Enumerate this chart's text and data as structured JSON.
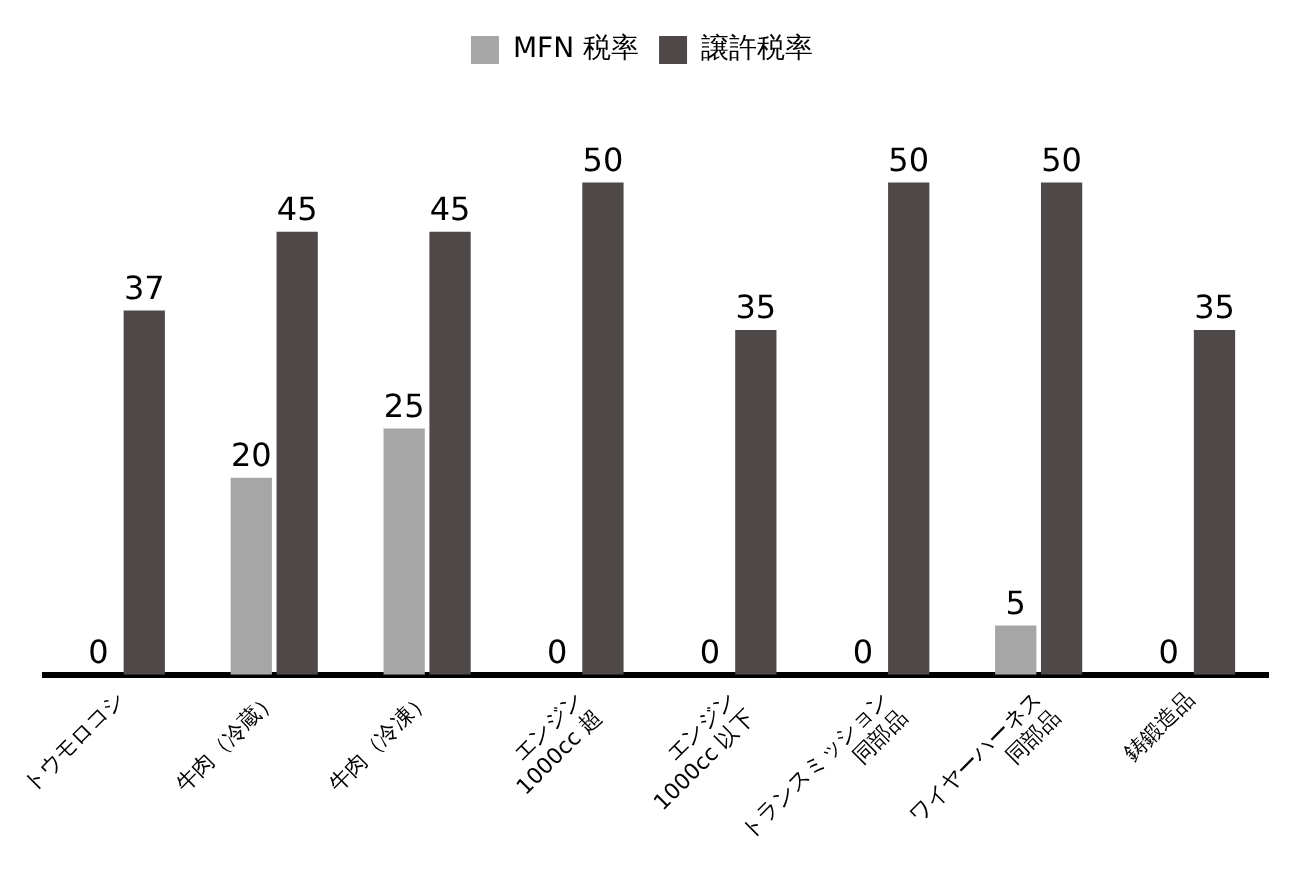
{
  "chart_data": {
    "type": "bar",
    "categories": [
      "トウモロコシ",
      "牛肉（冷蔵）",
      "牛肉（冷凍）",
      "エンジン\n1000cc 超",
      "エンジン\n1000cc 以下",
      "トランスミッション\n同部品",
      "ワイヤーハーネス\n同部品",
      "鋳鍛造品"
    ],
    "series": [
      {
        "name": "MFN 税率",
        "color": "#a6a6a6",
        "values": [
          0,
          20,
          25,
          0,
          0,
          0,
          5,
          0
        ]
      },
      {
        "name": "譲許税率",
        "color": "#4e4948",
        "values": [
          37,
          45,
          45,
          50,
          35,
          50,
          50,
          35
        ]
      }
    ],
    "data_labels": true,
    "legend": "top",
    "grid": false
  }
}
